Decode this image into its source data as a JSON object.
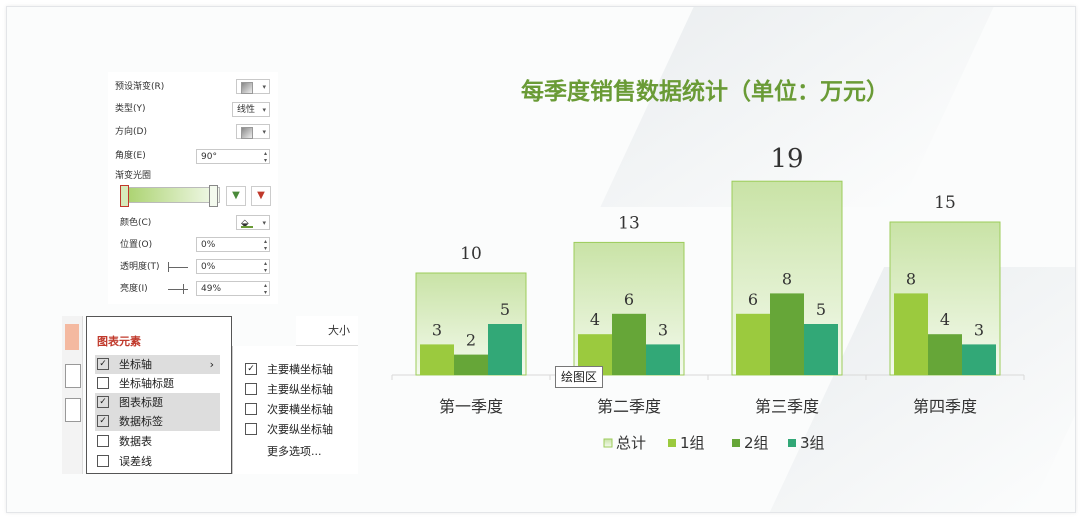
{
  "format_pane": {
    "preset_label": "预设渐变(R)",
    "type_label": "类型(Y)",
    "type_value": "线性",
    "direction_label": "方向(D)",
    "angle_label": "角度(E)",
    "angle_value": "90°",
    "stops_label": "渐变光圈",
    "color_label": "颜色(C)",
    "position_label": "位置(O)",
    "position_value": "0%",
    "transparency_label": "透明度(T)",
    "transparency_value": "0%",
    "brightness_label": "亮度(I)",
    "brightness_value": "49%"
  },
  "elements_menu": {
    "title": "图表元素",
    "size_tab": "大小",
    "items": [
      {
        "label": "坐标轴",
        "checked": true
      },
      {
        "label": "坐标轴标题",
        "checked": false
      },
      {
        "label": "图表标题",
        "checked": true
      },
      {
        "label": "数据标签",
        "checked": true
      },
      {
        "label": "数据表",
        "checked": false
      },
      {
        "label": "误差线",
        "checked": false
      }
    ],
    "submenu": [
      {
        "label": "主要横坐标轴",
        "checked": true
      },
      {
        "label": "主要纵坐标轴",
        "checked": false
      },
      {
        "label": "次要横坐标轴",
        "checked": false
      },
      {
        "label": "次要纵坐标轴",
        "checked": false
      }
    ],
    "more_options": "更多选项..."
  },
  "tooltip": "绘图区",
  "colors": {
    "title": "#6a9b36",
    "total_fill_top": "#c9e3a6",
    "total_fill_bottom": "#f4faee",
    "total_border": "#9ccc5a",
    "g1": "#9bca3e",
    "g2": "#66a638",
    "g3": "#32a877"
  },
  "chart_data": {
    "type": "bar",
    "title": "每季度销售数据统计（单位：万元）",
    "categories": [
      "第一季度",
      "第二季度",
      "第三季度",
      "第四季度"
    ],
    "series": [
      {
        "name": "总计",
        "values": [
          10,
          13,
          19,
          15
        ]
      },
      {
        "name": "1组",
        "values": [
          3,
          4,
          6,
          8
        ]
      },
      {
        "name": "2组",
        "values": [
          2,
          6,
          8,
          4
        ]
      },
      {
        "name": "3组",
        "values": [
          5,
          3,
          5,
          3
        ]
      }
    ],
    "ylim": [
      0,
      20
    ],
    "grid": false,
    "legend": "bottom"
  }
}
